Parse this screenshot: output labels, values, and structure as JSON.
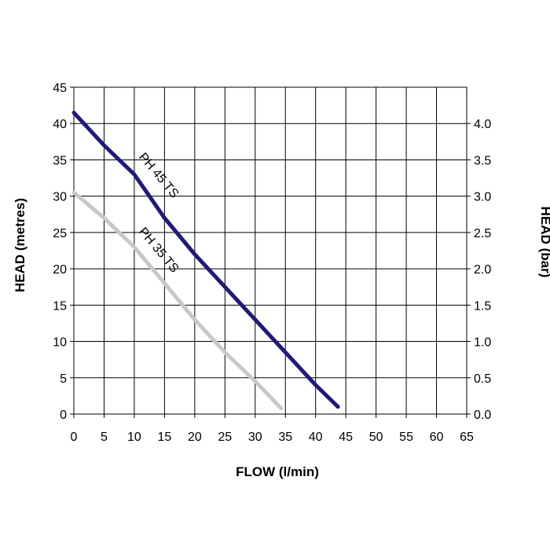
{
  "chart_data": {
    "type": "line",
    "title": "",
    "xlabel": "FLOW (l/min)",
    "ylabel": "HEAD (metres)",
    "y2label": "HEAD (bar)",
    "xlim": [
      0,
      65
    ],
    "ylim": [
      0,
      45
    ],
    "y2lim": [
      0,
      4.5
    ],
    "x_ticks": [
      "0",
      "5",
      "10",
      "15",
      "20",
      "25",
      "30",
      "35",
      "40",
      "45",
      "50",
      "55",
      "60",
      "65"
    ],
    "y_ticks": [
      "0",
      "5",
      "10",
      "15",
      "20",
      "25",
      "30",
      "35",
      "40",
      "45"
    ],
    "y2_ticks": [
      "0.0",
      "0.5",
      "1.0",
      "1.5",
      "2.0",
      "2.5",
      "3.0",
      "3.5",
      "4.0"
    ],
    "grid": true,
    "legend": "none",
    "series": [
      {
        "name": "PH 45 TS",
        "color": "#1f1a7a",
        "x": [
          0,
          5,
          10,
          15,
          20,
          25,
          30,
          35,
          40,
          43.7
        ],
        "y": [
          41.5,
          37,
          33,
          27,
          22,
          17.5,
          13,
          8.5,
          4,
          1
        ]
      },
      {
        "name": "PH 35 TS",
        "color": "#c8c8c8",
        "x": [
          0,
          5,
          10,
          15,
          20,
          25,
          30,
          34.3
        ],
        "y": [
          30.5,
          27,
          23,
          18,
          13,
          8.5,
          4.5,
          0.8
        ]
      }
    ]
  }
}
